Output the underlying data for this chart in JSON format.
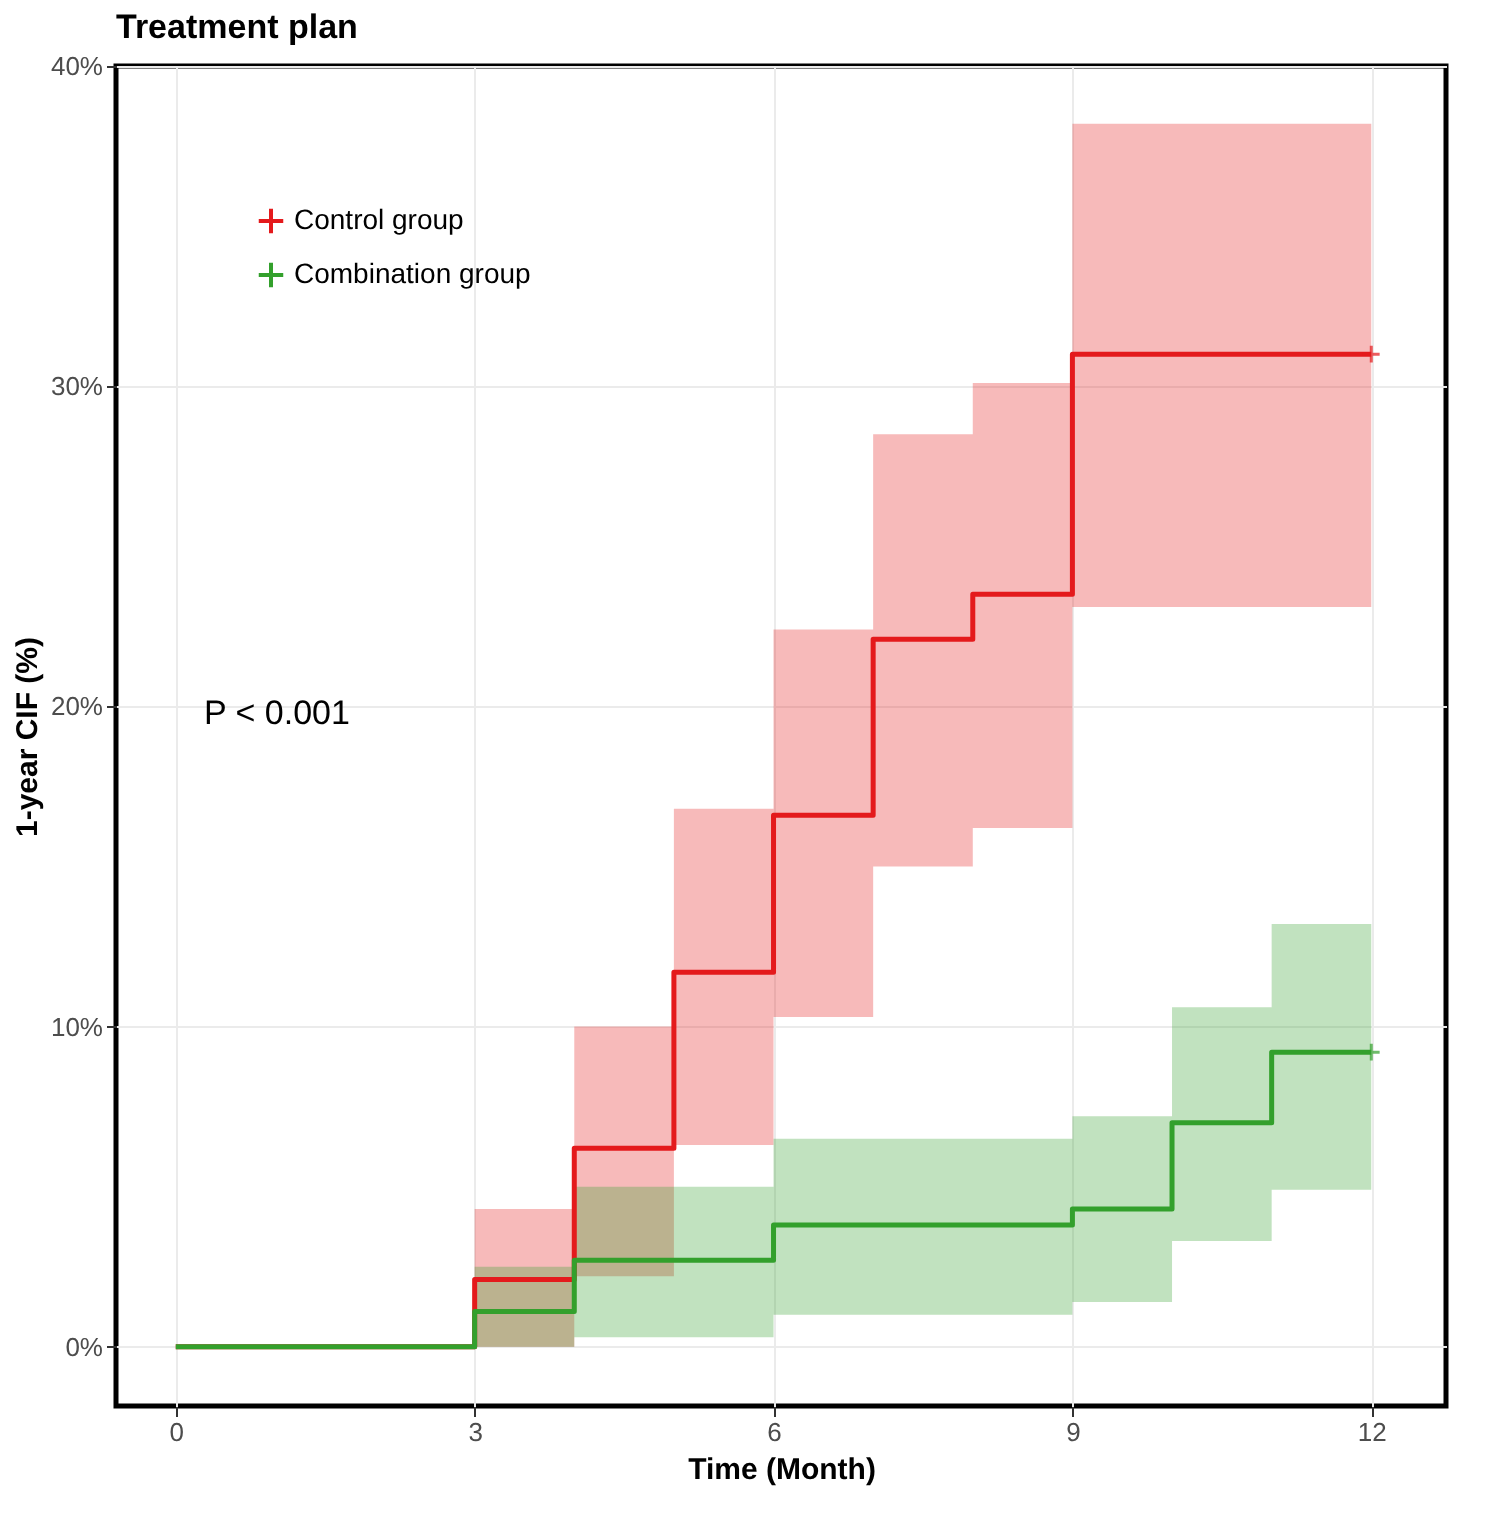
{
  "chart_data": {
    "type": "step",
    "title": "Treatment plan",
    "xlabel": "Time (Month)",
    "ylabel": "1-year CIF (%)",
    "xlim": [
      -0.6,
      12.75
    ],
    "xticks": [
      0,
      3,
      6,
      9,
      12
    ],
    "ylim": [
      -1.85,
      40
    ],
    "yticks": [
      {
        "value": 0,
        "label": "0%"
      },
      {
        "value": 10,
        "label": "10%"
      },
      {
        "value": 20,
        "label": "20%"
      },
      {
        "value": 30,
        "label": "30%"
      },
      {
        "value": 40,
        "label": "40%"
      }
    ],
    "grid": true,
    "legend": "top left",
    "line_style": "solid",
    "annotations": [
      "P < 0.001"
    ],
    "series": [
      {
        "name": "Control group",
        "color": "#e41a1c",
        "x": [
          0,
          3,
          4,
          5,
          6,
          7,
          8,
          9,
          12
        ],
        "values": [
          0,
          2.1,
          6.2,
          11.7,
          16.6,
          22.1,
          23.5,
          31.0,
          31.0
        ],
        "lower": [
          null,
          0,
          2.2,
          6.3,
          10.3,
          15.0,
          16.2,
          23.1,
          23.1
        ],
        "upper": [
          null,
          4.3,
          10.0,
          16.8,
          22.4,
          28.5,
          30.1,
          38.2,
          38.2
        ]
      },
      {
        "name": "Combination group",
        "color": "#33a02c",
        "x": [
          0,
          3,
          4,
          6,
          9,
          10,
          11,
          12
        ],
        "values": [
          0,
          1.1,
          2.7,
          3.8,
          4.3,
          7.0,
          9.2,
          9.2
        ],
        "lower": [
          null,
          0,
          0.3,
          1.0,
          1.4,
          3.3,
          4.9,
          4.9
        ],
        "upper": [
          null,
          2.5,
          5.0,
          6.5,
          7.2,
          10.6,
          13.2,
          13.2
        ]
      }
    ]
  }
}
